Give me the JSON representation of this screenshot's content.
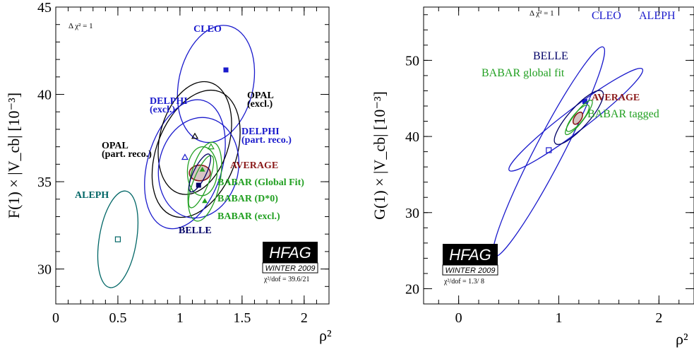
{
  "chart_data": [
    {
      "type": "scatter",
      "xlabel": "ρ²",
      "ylabel": "F(1) × |V_cb| [10⁻³]",
      "xlim": [
        0,
        2.2
      ],
      "ylim": [
        28,
        45
      ],
      "xticks": [
        "0",
        "0.5",
        "1",
        "1.5",
        "2"
      ],
      "yticks": [
        "30",
        "35",
        "40",
        "45"
      ],
      "delta_chi2": "Δ χ² = 1",
      "badge": {
        "title": "HFAG",
        "season": "WINTER 2009",
        "chi2": "χ²/dof = 39.6/21"
      },
      "measurements": [
        {
          "name": "CLEO",
          "color": "#1a1acc",
          "x": 1.37,
          "y": 41.4,
          "marker": "square-filled",
          "ellipse": {
            "cx": 1.29,
            "cy": 40.6,
            "a": 3.4,
            "b": 0.3,
            "angle": 5.6
          }
        },
        {
          "name": "OPAL (excl.)",
          "color": "#000000",
          "x": 1.15,
          "y": 36.6,
          "marker": "none",
          "ellipse": {
            "cx": 1.13,
            "cy": 36.6,
            "a": 3.8,
            "b": 0.32,
            "angle": 9.5
          }
        },
        {
          "name": "DELPHI (excl.)",
          "color": "#1a1acc",
          "x": 1.04,
          "y": 36.4,
          "marker": "triangle-open",
          "ellipse": {
            "cx": 1.04,
            "cy": 36.0,
            "a": 3.8,
            "b": 0.3,
            "angle": 7.5
          }
        },
        {
          "name": "OPAL (part. reco.)",
          "color": "#000000",
          "x": 1.12,
          "y": 37.6,
          "marker": "triangle-open",
          "ellipse": {
            "cx": 1.12,
            "cy": 37.5,
            "a": 3.3,
            "b": 0.28,
            "angle": 6.8
          }
        },
        {
          "name": "DELPHI (part. reco.)",
          "color": "#1a1acc",
          "x": 1.19,
          "y": 35.5,
          "marker": "none",
          "ellipse": {
            "cx": 1.15,
            "cy": 35.8,
            "a": 2.9,
            "b": 0.32,
            "angle": 5.3
          }
        },
        {
          "name": "AVERAGE",
          "color": "#8b1a1a",
          "x": 1.16,
          "y": 35.5,
          "marker": "none",
          "ellipse": {
            "cx": 1.16,
            "cy": 35.5,
            "a": 0.45,
            "b": 0.085,
            "angle": 0
          }
        },
        {
          "name": "BABAR (Global Fit)",
          "color": "#22a022",
          "x": 1.18,
          "y": 35.7,
          "marker": "triangle-filled",
          "ellipse": {
            "cx": 1.18,
            "cy": 35.6,
            "a": 1.4,
            "b": 0.12,
            "angle": 0.8
          }
        },
        {
          "name": "BABAR (D*0)",
          "color": "#22a022",
          "x": 1.25,
          "y": 37.0,
          "marker": "triangle-open",
          "ellipse": {
            "cx": 1.2,
            "cy": 35.0,
            "a": 2.3,
            "b": 0.12,
            "angle": 5.5
          }
        },
        {
          "name": "BABAR (excl.)",
          "color": "#22a022",
          "x": 1.2,
          "y": 33.9,
          "marker": "triangle-filled",
          "ellipse": {
            "cx": 1.17,
            "cy": 35.0,
            "a": 1.6,
            "b": 0.06,
            "angle": 10
          }
        },
        {
          "name": "BELLE",
          "color": "#000066",
          "x": 1.15,
          "y": 34.8,
          "marker": "square-filled",
          "ellipse": {
            "cx": 1.16,
            "cy": 35.5,
            "a": 1.2,
            "b": 0.05,
            "angle": 12
          }
        },
        {
          "name": "ALEPH",
          "color": "#006666",
          "x": 0.5,
          "y": 31.7,
          "marker": "square-open",
          "ellipse": {
            "cx": 0.5,
            "cy": 31.7,
            "a": 2.8,
            "b": 0.15,
            "angle": 4.3
          }
        }
      ]
    },
    {
      "type": "scatter",
      "xlabel": "ρ²",
      "ylabel": "G(1) × |V_cb| [10⁻³]",
      "xlim": [
        -0.35,
        2.35
      ],
      "ylim": [
        18,
        57
      ],
      "xticks": [
        "0",
        "1",
        "2"
      ],
      "yticks": [
        "20",
        "30",
        "40",
        "50"
      ],
      "delta_chi2": "Δ χ² = 1",
      "badge": {
        "title": "HFAG",
        "season": "WINTER 2009",
        "chi2": "χ²/dof = 1.3/ 8"
      },
      "measurements": [
        {
          "name": "ALEPH",
          "color": "#1a1acc",
          "x": 0.9,
          "y": 38.2,
          "marker": "square-open",
          "ellipse": {
            "cx": 0.9,
            "cy": 38.0,
            "a": 15.5,
            "b": 0.14,
            "angle": 12.5
          }
        },
        {
          "name": "CLEO",
          "color": "#1a1acc",
          "x": 1.26,
          "y": 44.6,
          "marker": "square-filled",
          "ellipse": {
            "cx": 1.17,
            "cy": 42.2,
            "a": 11.0,
            "b": 0.11,
            "angle": 24
          }
        },
        {
          "name": "BELLE",
          "color": "#000066",
          "x": 1.2,
          "y": 42.5,
          "marker": "none",
          "ellipse": {
            "cx": 1.2,
            "cy": 42.5,
            "a": 4.6,
            "b": 0.1,
            "angle": 19
          }
        },
        {
          "name": "BABAR global fit",
          "color": "#22a022",
          "x": 1.2,
          "y": 43.0,
          "marker": "none",
          "ellipse": {
            "cx": 1.2,
            "cy": 42.5,
            "a": 2.8,
            "b": 0.05,
            "angle": 17
          }
        },
        {
          "name": "BABAR tagged",
          "color": "#22a022",
          "x": 1.22,
          "y": 42.4,
          "marker": "none",
          "ellipse": {
            "cx": 1.19,
            "cy": 42.4,
            "a": 2.2,
            "b": 0.05,
            "angle": 18
          }
        },
        {
          "name": "AVERAGE",
          "color": "#8b1a1a",
          "x": 1.19,
          "y": 42.4,
          "marker": "none",
          "ellipse": {
            "cx": 1.19,
            "cy": 42.4,
            "a": 0.9,
            "b": 0.035,
            "angle": 15
          }
        }
      ]
    }
  ]
}
